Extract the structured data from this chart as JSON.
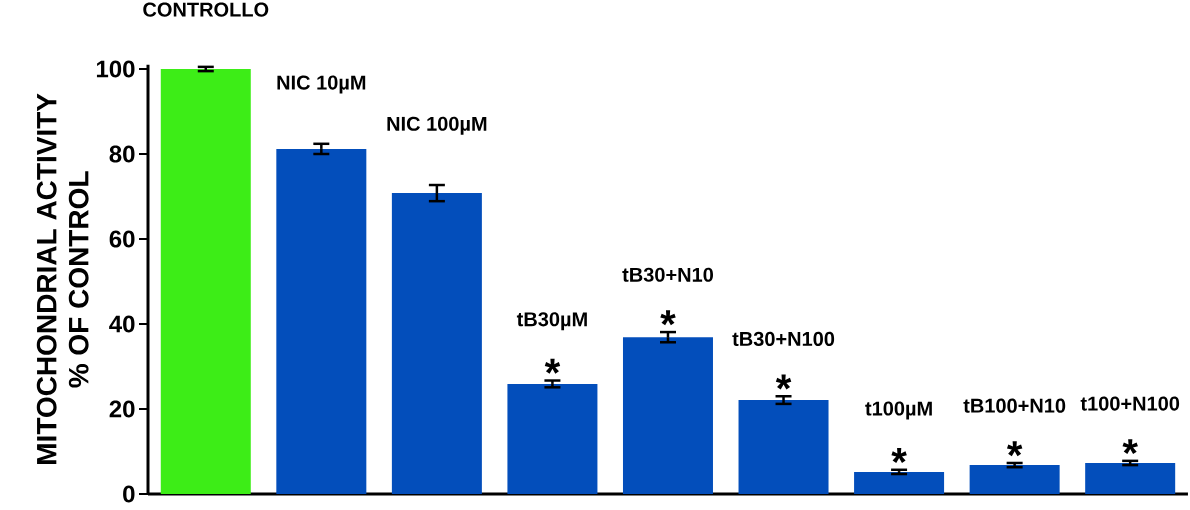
{
  "chart_data": {
    "type": "bar",
    "ylabel": "MITOCHONDRIAL ACTIVITY % OF CONTROL",
    "categories": [
      "CONTROLLO",
      "NIC 10µM",
      "NIC 100µM",
      "tB30µM",
      "tB30+N10",
      "tB30+N100",
      "t100µM",
      "tB100+N10",
      "t100+N100"
    ],
    "values": [
      100,
      81.2,
      70.8,
      25.9,
      36.9,
      22.1,
      5.2,
      6.8,
      7.3
    ],
    "errors": [
      0.5,
      1.2,
      1.9,
      0.8,
      1.2,
      0.9,
      0.5,
      0.5,
      0.5
    ],
    "colors": [
      "#3ded17",
      "#034ebb",
      "#034ebb",
      "#034ebb",
      "#034ebb",
      "#034ebb",
      "#034ebb",
      "#034ebb",
      "#034ebb"
    ],
    "ylim": [
      0,
      101
    ],
    "yticks": [
      0,
      20,
      40,
      60,
      80,
      100
    ],
    "annotations": [
      {
        "text": "*",
        "x": "tB30µM",
        "y": 25.9
      },
      {
        "text": "*",
        "x": "tB30+N10",
        "y": 36.9
      },
      {
        "text": "*",
        "x": "tB30+N100",
        "y": 22.1
      },
      {
        "text": "*",
        "x": "t100µM",
        "y": 5.2
      },
      {
        "text": "*",
        "x": "tB100+N10",
        "y": 6.8
      },
      {
        "text": "*",
        "x": "t100+N100",
        "y": 7.3
      }
    ]
  }
}
